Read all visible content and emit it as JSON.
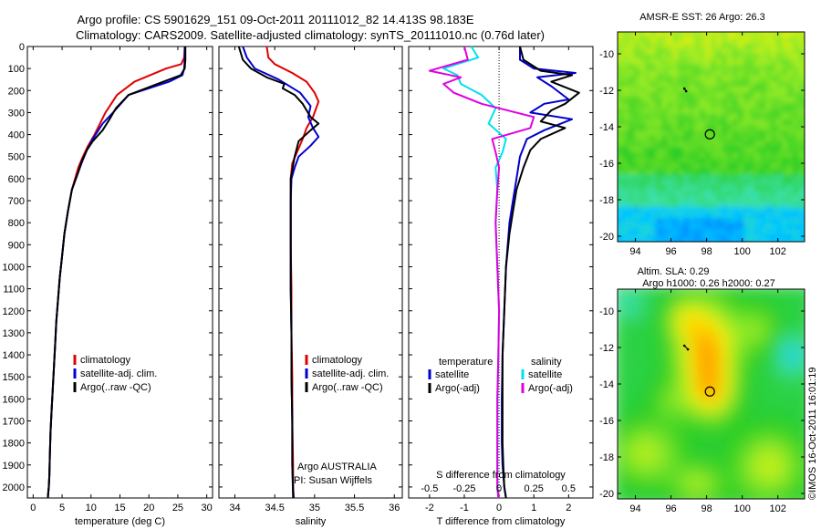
{
  "title": {
    "line1": "Argo profile: CS 5901629_151 09-Oct-2011 20111012_82 14.413S 98.183E",
    "line2": "Climatology: CARS2009. Satellite-adjusted climatology: synTS_20111010.nc (0.76d later)"
  },
  "side_stamp": "©IMOS 16-Oct-2011 16:01:19",
  "colors": {
    "climatology": "#e00000",
    "satellite": "#0000d0",
    "argo": "#000000",
    "satellite_s_diff": "#00e0f0",
    "argo_s_diff": "#e000e0"
  },
  "chart_data": [
    {
      "type": "line",
      "id": "temperature",
      "xlabel": "temperature (deg C)",
      "ylabel": "",
      "xlim": [
        -1,
        31
      ],
      "ylim": [
        2050,
        0
      ],
      "xticks": [
        0,
        5,
        10,
        15,
        20,
        25,
        30
      ],
      "xtick_labels": [
        "0",
        "5",
        "10",
        "15",
        "20",
        "25",
        "30"
      ],
      "yticks": [
        0,
        100,
        200,
        300,
        400,
        500,
        600,
        700,
        800,
        900,
        1000,
        1100,
        1200,
        1300,
        1400,
        1500,
        1600,
        1700,
        1800,
        1900,
        2000
      ],
      "ytick_labels": [
        "0",
        "100",
        "200",
        "300",
        "400",
        "500",
        "600",
        "700",
        "800",
        "900",
        "1000",
        "1100",
        "1200",
        "1300",
        "1400",
        "1500",
        "1600",
        "1700",
        "1800",
        "1900",
        "2000"
      ],
      "legend": [
        "climatology",
        "satellite-adj. clim.",
        "Argo(..raw -QC)"
      ],
      "series": [
        {
          "name": "climatology",
          "color": "#e00000",
          "x": [
            26.2,
            26.1,
            25.6,
            23.0,
            17.5,
            14.5,
            12.5,
            10.6,
            9.5,
            8.6,
            7.8,
            6.7,
            6.0,
            5.4,
            5.0,
            4.6,
            4.3,
            4.0,
            3.8,
            3.6,
            3.4,
            3.2,
            3.0,
            2.9,
            2.8,
            2.7,
            2.6,
            2.55
          ],
          "y": [
            0,
            50,
            80,
            100,
            160,
            220,
            300,
            400,
            450,
            500,
            550,
            650,
            750,
            850,
            950,
            1050,
            1150,
            1250,
            1350,
            1450,
            1550,
            1650,
            1750,
            1850,
            1950,
            2000,
            2030,
            2050
          ]
        },
        {
          "name": "satellite-adj. clim.",
          "color": "#0000d0",
          "x": [
            26.2,
            26.2,
            26.1,
            25.8,
            23.5,
            16.5,
            13.8,
            12.0,
            10.3,
            9.3,
            8.5,
            7.8,
            6.7,
            6.0,
            5.4,
            5.0,
            4.6,
            4.3,
            4.0,
            3.8,
            3.6,
            3.4,
            3.2,
            3.0,
            2.9,
            2.8,
            2.7,
            2.6,
            2.55
          ],
          "y": [
            0,
            60,
            100,
            130,
            160,
            220,
            300,
            350,
            420,
            470,
            520,
            570,
            650,
            750,
            850,
            950,
            1050,
            1150,
            1250,
            1350,
            1450,
            1550,
            1650,
            1750,
            1850,
            1950,
            2000,
            2030,
            2050
          ]
        },
        {
          "name": "Argo(..raw -QC)",
          "color": "#000000",
          "x": [
            26.3,
            26.3,
            26.2,
            25.5,
            22.5,
            16.5,
            14.3,
            13.2,
            12.0,
            10.3,
            9.3,
            8.4,
            7.8,
            6.7,
            6.0,
            5.4,
            5.0,
            4.6,
            4.3,
            4.0,
            3.8,
            3.6,
            3.4,
            3.2,
            3.0,
            2.9,
            2.8,
            2.7,
            2.6,
            2.55
          ],
          "y": [
            0,
            60,
            100,
            130,
            160,
            220,
            280,
            330,
            380,
            430,
            470,
            520,
            570,
            650,
            750,
            850,
            950,
            1050,
            1150,
            1250,
            1350,
            1450,
            1550,
            1650,
            1750,
            1850,
            1950,
            2000,
            2030,
            2050
          ]
        }
      ]
    },
    {
      "type": "line",
      "id": "salinity",
      "xlabel": "salinity",
      "xlim": [
        33.8,
        36.1
      ],
      "ylim": [
        2050,
        0
      ],
      "xticks": [
        34,
        34.5,
        35,
        35.5,
        36
      ],
      "xtick_labels": [
        "34",
        "34.5",
        "35",
        "35.5",
        "36"
      ],
      "legend": [
        "climatology",
        "satellite-adj. clim.",
        "Argo(..raw -QC)"
      ],
      "annotation": [
        "Argo AUSTRALIA",
        "PI: Susan Wijffels"
      ],
      "series": [
        {
          "name": "climatology",
          "color": "#e00000",
          "x": [
            34.4,
            34.42,
            34.5,
            34.72,
            34.9,
            35.0,
            35.05,
            34.98,
            34.9,
            34.85,
            34.78,
            34.72,
            34.7,
            34.7,
            34.7,
            34.71,
            34.71,
            34.72,
            34.72,
            34.73,
            34.73,
            34.74
          ],
          "y": [
            0,
            50,
            80,
            120,
            160,
            210,
            250,
            320,
            370,
            420,
            480,
            530,
            600,
            700,
            900,
            1100,
            1300,
            1500,
            1700,
            1900,
            2000,
            2050
          ]
        },
        {
          "name": "satellite-adj. clim.",
          "color": "#0000d0",
          "x": [
            34.1,
            34.15,
            34.25,
            34.55,
            34.82,
            34.95,
            34.92,
            34.98,
            35.05,
            34.95,
            34.8,
            34.75,
            34.71,
            34.7,
            34.7,
            34.7,
            34.71,
            34.71,
            34.72,
            34.72,
            34.73,
            34.73,
            34.74
          ],
          "y": [
            0,
            50,
            100,
            150,
            210,
            270,
            320,
            370,
            410,
            450,
            500,
            550,
            600,
            700,
            900,
            1100,
            1300,
            1500,
            1700,
            1900,
            2000,
            2030,
            2050
          ]
        },
        {
          "name": "Argo(..raw -QC)",
          "color": "#000000",
          "x": [
            34.05,
            34.1,
            34.2,
            34.4,
            34.62,
            34.6,
            34.75,
            34.85,
            34.9,
            34.95,
            35.05,
            34.95,
            34.8,
            34.75,
            34.7,
            34.7,
            34.7,
            34.7,
            34.71,
            34.71,
            34.72,
            34.72,
            34.73
          ],
          "y": [
            0,
            60,
            100,
            140,
            170,
            190,
            220,
            260,
            290,
            320,
            350,
            380,
            430,
            500,
            600,
            700,
            900,
            1100,
            1300,
            1500,
            1700,
            1900,
            2050
          ]
        }
      ]
    },
    {
      "type": "line",
      "id": "difference",
      "xlabel": "T difference from climatology",
      "xlabel_top": "S difference from climatology",
      "xlim": [
        -2.6,
        2.7
      ],
      "ylim": [
        2050,
        0
      ],
      "xticks": [
        -2,
        -1,
        0,
        1,
        2
      ],
      "xtick_labels": [
        "-2",
        "-1",
        "0",
        "1",
        "2"
      ],
      "s_xticks": [
        -2,
        -1,
        0,
        1,
        2
      ],
      "s_xtick_labels": [
        "-0.5",
        "-0.25",
        "0",
        "0.25",
        "0.5"
      ],
      "legend_left_title": "temperature",
      "legend_right_title": "salinity",
      "legend_left": [
        "satellite",
        "Argo(-adj)"
      ],
      "legend_right": [
        "satellite",
        "Argo(-adj)"
      ],
      "series": [
        {
          "name": "T satellite",
          "color": "#0000d0",
          "x": [
            0.6,
            0.6,
            1.0,
            2.2,
            1.1,
            1.5,
            2.0,
            1.3,
            0.9,
            2.1,
            1.3,
            0.8,
            0.6,
            0.5,
            0.4,
            0.3,
            0.2,
            0.15,
            0.1,
            0.08,
            0.08,
            0.1,
            0.15,
            0.2
          ],
          "y": [
            0,
            60,
            100,
            120,
            140,
            180,
            240,
            260,
            300,
            330,
            380,
            420,
            500,
            600,
            700,
            800,
            1000,
            1200,
            1400,
            1600,
            1800,
            1900,
            2000,
            2050
          ]
        },
        {
          "name": "T Argo(-adj)",
          "color": "#000000",
          "x": [
            0.6,
            0.7,
            1.2,
            2.1,
            1.5,
            2.3,
            1.9,
            1.5,
            1.2,
            1.9,
            1.2,
            0.9,
            0.7,
            0.5,
            0.4,
            0.3,
            0.2,
            0.15,
            0.1,
            0.1,
            0.1,
            0.12,
            0.15,
            0.2
          ],
          "y": [
            0,
            60,
            110,
            130,
            160,
            210,
            260,
            290,
            340,
            370,
            420,
            470,
            550,
            650,
            750,
            850,
            1000,
            1200,
            1400,
            1600,
            1800,
            1900,
            2000,
            2050
          ]
        },
        {
          "name": "S satellite",
          "color": "#00e0f0",
          "x": [
            -0.8,
            -0.6,
            -1.6,
            -1.2,
            -1.1,
            -0.5,
            -0.1,
            -0.3,
            0.2,
            0.1,
            -0.1,
            -0.05,
            -0.1,
            -0.05,
            0.0,
            -0.02,
            -0.05,
            -0.05,
            -0.05,
            -0.05,
            -0.02
          ],
          "y": [
            0,
            50,
            100,
            130,
            170,
            220,
            280,
            350,
            420,
            480,
            550,
            650,
            800,
            1000,
            1200,
            1400,
            1600,
            1800,
            1900,
            2000,
            2050
          ]
        },
        {
          "name": "S Argo(-adj)",
          "color": "#e000e0",
          "x": [
            -1.0,
            -0.9,
            -2.0,
            -1.1,
            -1.6,
            -1.3,
            -0.5,
            1.0,
            0.9,
            -0.2,
            -0.1,
            0.0,
            -0.05,
            -0.1,
            -0.05,
            0.0,
            -0.02,
            -0.05,
            -0.05,
            -0.05,
            -0.05,
            -0.02
          ],
          "y": [
            0,
            60,
            110,
            140,
            170,
            210,
            260,
            320,
            370,
            420,
            480,
            550,
            650,
            800,
            1000,
            1200,
            1400,
            1600,
            1800,
            1900,
            2000,
            2050
          ]
        }
      ]
    },
    {
      "type": "heatmap",
      "id": "sst_map",
      "title": "AMSR-E SST: 26 Argo: 26.3",
      "xlim": [
        93,
        103.5
      ],
      "ylim": [
        -20.3,
        -8.8
      ],
      "xticks": [
        94,
        96,
        98,
        100,
        102
      ],
      "xtick_labels": [
        "94",
        "96",
        "98",
        "100",
        "102"
      ],
      "yticks": [
        -10,
        -12,
        -14,
        -16,
        -18,
        -20
      ],
      "ytick_labels": [
        "-10",
        "-12",
        "-14",
        "-16",
        "-18",
        "-20"
      ],
      "float_position": [
        98.183,
        -14.413
      ],
      "track": [
        [
          96.75,
          -11.9
        ],
        [
          96.85,
          -12.05
        ]
      ]
    },
    {
      "type": "heatmap",
      "id": "sla_map",
      "title": "Altim. SLA: 0.29",
      "subtitle": "Argo h1000: 0.26 h2000: 0.27",
      "xlim": [
        93,
        103.5
      ],
      "ylim": [
        -20.3,
        -8.8
      ],
      "xticks": [
        94,
        96,
        98,
        100,
        102
      ],
      "xtick_labels": [
        "94",
        "96",
        "98",
        "100",
        "102"
      ],
      "yticks": [
        -10,
        -12,
        -14,
        -16,
        -18,
        -20
      ],
      "ytick_labels": [
        "-10",
        "-12",
        "-14",
        "-16",
        "-18",
        "-20"
      ],
      "float_position": [
        98.183,
        -14.413
      ],
      "track": [
        [
          96.75,
          -11.9
        ],
        [
          96.95,
          -12.1
        ]
      ]
    }
  ]
}
